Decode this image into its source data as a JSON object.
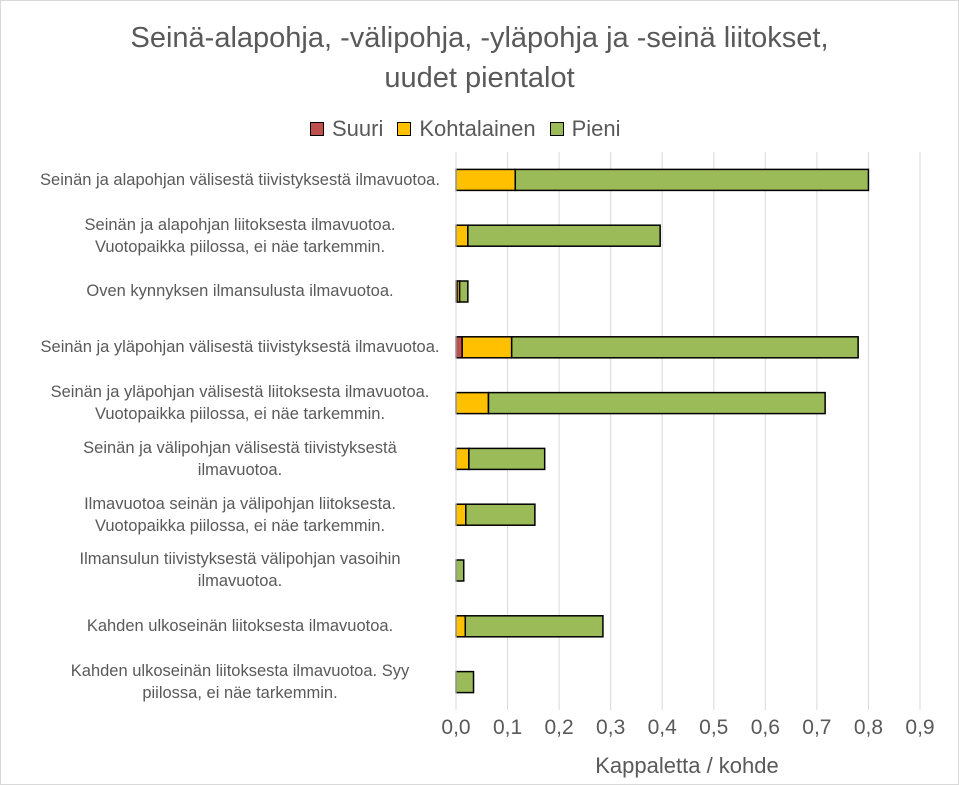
{
  "chart_data": {
    "type": "bar",
    "stacked": true,
    "orientation": "horizontal",
    "title": "Seinä-alapohja, -välipohja, -yläpohja ja -seinä liitokset,\nuudet pientalot",
    "xlabel": "Kappaletta / kohde",
    "xlim": [
      0,
      0.9
    ],
    "x_ticks": [
      "0,0",
      "0,1",
      "0,2",
      "0,3",
      "0,4",
      "0,5",
      "0,6",
      "0,7",
      "0,8",
      "0,9"
    ],
    "grid": true,
    "legend_position": "top",
    "categories": [
      "Seinän ja alapohjan välisestä tiivistyksestä ilmavuotoa.",
      "Seinän ja alapohjan liitoksesta ilmavuotoa. Vuotopaikka piilossa, ei näe tarkemmin.",
      "Oven kynnyksen ilmansulusta ilmavuotoa.",
      "Seinän ja yläpohjan välisestä tiivistyksestä ilmavuotoa.",
      "Seinän ja yläpohjan välisestä liitoksesta ilmavuotoa. Vuotopaikka piilossa, ei näe tarkemmin.",
      "Seinän ja välipohjan välisestä tiivistyksestä ilmavuotoa.",
      "Ilmavuotoa seinän ja välipohjan liitoksesta. Vuotopaikka piilossa, ei näe tarkemmin.",
      "Ilmansulun tiivistyksestä välipohjan vasoihin ilmavuotoa.",
      "Kahden ulkoseinän liitoksesta ilmavuotoa.",
      "Kahden ulkoseinän liitoksesta ilmavuotoa. Syy piilossa, ei näe tarkemmin."
    ],
    "series": [
      {
        "name": "Suuri",
        "color": "#c0504d",
        "values": [
          0,
          0,
          0.002,
          0.012,
          0,
          0,
          0,
          0,
          0,
          0
        ]
      },
      {
        "name": "Kohtalainen",
        "color": "#ffc000",
        "values": [
          0.115,
          0.023,
          0.005,
          0.096,
          0.063,
          0.025,
          0.019,
          0,
          0.018,
          0
        ]
      },
      {
        "name": "Pieni",
        "color": "#9bbb59",
        "values": [
          0.685,
          0.373,
          0.016,
          0.672,
          0.653,
          0.147,
          0.134,
          0.015,
          0.267,
          0.034
        ]
      }
    ]
  }
}
